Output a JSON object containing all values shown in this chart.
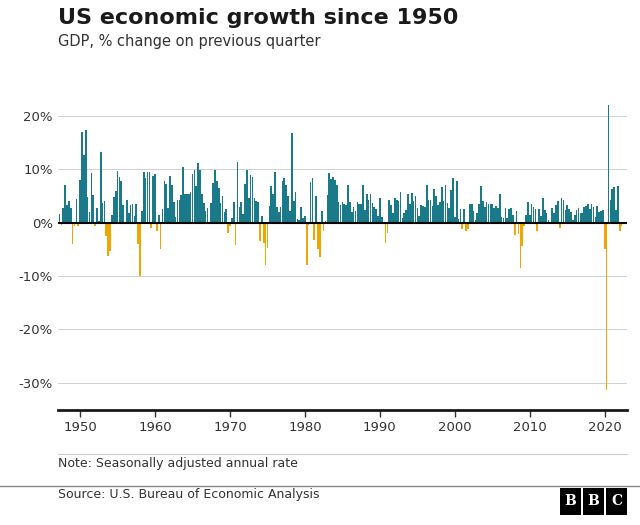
{
  "title": "US economic growth since 1950",
  "subtitle": "GDP, % change on previous quarter",
  "note": "Note: Seasonally adjusted annual rate",
  "source": "Source: U.S. Bureau of Economic Analysis",
  "bbc_logo": "BBC",
  "positive_color": "#1a7a8a",
  "negative_color": "#f0a500",
  "background_color": "#ffffff",
  "ylim": [
    -35,
    22
  ],
  "yticks": [
    -30,
    -20,
    -10,
    0,
    10,
    20
  ],
  "ytick_labels": [
    "-30%",
    "-20%",
    "-10%",
    "0%",
    "10%",
    "20%"
  ],
  "xticks": [
    1950,
    1960,
    1970,
    1980,
    1990,
    2000,
    2010,
    2020
  ],
  "gdp_data": [
    [
      1947.25,
      1.6
    ],
    [
      1947.5,
      -0.5
    ],
    [
      1947.75,
      2.8
    ],
    [
      1948.0,
      7.0
    ],
    [
      1948.25,
      3.2
    ],
    [
      1948.5,
      4.1
    ],
    [
      1948.75,
      2.7
    ],
    [
      1949.0,
      -4.0
    ],
    [
      1949.25,
      -0.7
    ],
    [
      1949.5,
      4.4
    ],
    [
      1949.75,
      -0.7
    ],
    [
      1950.0,
      8.0
    ],
    [
      1950.25,
      16.9
    ],
    [
      1950.5,
      12.7
    ],
    [
      1950.75,
      17.4
    ],
    [
      1951.0,
      4.7
    ],
    [
      1951.25,
      2.0
    ],
    [
      1951.5,
      9.2
    ],
    [
      1951.75,
      5.1
    ],
    [
      1952.0,
      -0.7
    ],
    [
      1952.25,
      2.7
    ],
    [
      1952.5,
      0.3
    ],
    [
      1952.75,
      13.2
    ],
    [
      1953.0,
      3.7
    ],
    [
      1953.25,
      4.1
    ],
    [
      1953.5,
      -2.6
    ],
    [
      1953.75,
      -6.3
    ],
    [
      1954.0,
      -5.4
    ],
    [
      1954.25,
      1.5
    ],
    [
      1954.5,
      4.7
    ],
    [
      1954.75,
      5.9
    ],
    [
      1955.0,
      9.7
    ],
    [
      1955.25,
      8.6
    ],
    [
      1955.5,
      7.7
    ],
    [
      1955.75,
      3.2
    ],
    [
      1956.0,
      0.1
    ],
    [
      1956.25,
      4.3
    ],
    [
      1956.5,
      1.8
    ],
    [
      1956.75,
      3.3
    ],
    [
      1957.0,
      3.5
    ],
    [
      1957.25,
      1.2
    ],
    [
      1957.5,
      3.4
    ],
    [
      1957.75,
      -4.1
    ],
    [
      1958.0,
      -10.0
    ],
    [
      1958.25,
      2.1
    ],
    [
      1958.5,
      9.5
    ],
    [
      1958.75,
      8.4
    ],
    [
      1959.0,
      9.5
    ],
    [
      1959.25,
      9.4
    ],
    [
      1959.5,
      -1.1
    ],
    [
      1959.75,
      8.7
    ],
    [
      1960.0,
      9.0
    ],
    [
      1960.25,
      -1.6
    ],
    [
      1960.5,
      1.5
    ],
    [
      1960.75,
      -4.9
    ],
    [
      1961.0,
      2.6
    ],
    [
      1961.25,
      7.7
    ],
    [
      1961.5,
      7.2
    ],
    [
      1961.75,
      2.8
    ],
    [
      1962.0,
      8.7
    ],
    [
      1962.25,
      7.0
    ],
    [
      1962.5,
      3.9
    ],
    [
      1962.75,
      1.0
    ],
    [
      1963.0,
      4.3
    ],
    [
      1963.25,
      4.3
    ],
    [
      1963.5,
      5.2
    ],
    [
      1963.75,
      10.4
    ],
    [
      1964.0,
      5.4
    ],
    [
      1964.25,
      5.3
    ],
    [
      1964.5,
      5.3
    ],
    [
      1964.75,
      5.8
    ],
    [
      1965.0,
      9.1
    ],
    [
      1965.25,
      9.9
    ],
    [
      1965.5,
      6.8
    ],
    [
      1965.75,
      11.1
    ],
    [
      1966.0,
      9.9
    ],
    [
      1966.25,
      5.4
    ],
    [
      1966.5,
      3.7
    ],
    [
      1966.75,
      2.2
    ],
    [
      1967.0,
      2.7
    ],
    [
      1967.25,
      -0.3
    ],
    [
      1967.5,
      3.7
    ],
    [
      1967.75,
      7.4
    ],
    [
      1968.0,
      9.8
    ],
    [
      1968.25,
      7.8
    ],
    [
      1968.5,
      6.4
    ],
    [
      1968.75,
      3.6
    ],
    [
      1969.0,
      5.0
    ],
    [
      1969.25,
      2.0
    ],
    [
      1969.5,
      2.5
    ],
    [
      1969.75,
      -1.9
    ],
    [
      1970.0,
      -0.7
    ],
    [
      1970.25,
      0.8
    ],
    [
      1970.5,
      3.8
    ],
    [
      1970.75,
      -4.2
    ],
    [
      1971.0,
      11.3
    ],
    [
      1971.25,
      3.0
    ],
    [
      1971.5,
      3.8
    ],
    [
      1971.75,
      1.6
    ],
    [
      1972.0,
      7.3
    ],
    [
      1972.25,
      9.8
    ],
    [
      1972.5,
      4.5
    ],
    [
      1972.75,
      8.9
    ],
    [
      1973.0,
      8.5
    ],
    [
      1973.25,
      4.5
    ],
    [
      1973.5,
      4.0
    ],
    [
      1973.75,
      3.8
    ],
    [
      1974.0,
      -3.4
    ],
    [
      1974.25,
      1.2
    ],
    [
      1974.5,
      -3.8
    ],
    [
      1974.75,
      -7.9
    ],
    [
      1975.0,
      -4.8
    ],
    [
      1975.25,
      3.1
    ],
    [
      1975.5,
      6.9
    ],
    [
      1975.75,
      5.4
    ],
    [
      1976.0,
      9.4
    ],
    [
      1976.25,
      3.0
    ],
    [
      1976.5,
      2.0
    ],
    [
      1976.75,
      2.9
    ],
    [
      1977.0,
      7.7
    ],
    [
      1977.25,
      8.4
    ],
    [
      1977.5,
      7.0
    ],
    [
      1977.75,
      4.9
    ],
    [
      1978.0,
      2.2
    ],
    [
      1978.25,
      16.7
    ],
    [
      1978.5,
      4.0
    ],
    [
      1978.75,
      5.7
    ],
    [
      1979.0,
      0.7
    ],
    [
      1979.25,
      0.4
    ],
    [
      1979.5,
      2.9
    ],
    [
      1979.75,
      0.9
    ],
    [
      1980.0,
      1.3
    ],
    [
      1980.25,
      -7.9
    ],
    [
      1980.5,
      -0.5
    ],
    [
      1980.75,
      7.6
    ],
    [
      1981.0,
      8.4
    ],
    [
      1981.25,
      -3.2
    ],
    [
      1981.5,
      4.9
    ],
    [
      1981.75,
      -4.9
    ],
    [
      1982.0,
      -6.4
    ],
    [
      1982.25,
      2.2
    ],
    [
      1982.5,
      -1.5
    ],
    [
      1982.75,
      0.3
    ],
    [
      1983.0,
      5.1
    ],
    [
      1983.25,
      9.3
    ],
    [
      1983.5,
      8.1
    ],
    [
      1983.75,
      8.5
    ],
    [
      1984.0,
      8.0
    ],
    [
      1984.25,
      7.1
    ],
    [
      1984.5,
      3.9
    ],
    [
      1984.75,
      3.3
    ],
    [
      1985.0,
      3.8
    ],
    [
      1985.25,
      3.5
    ],
    [
      1985.5,
      3.2
    ],
    [
      1985.75,
      7.1
    ],
    [
      1986.0,
      3.9
    ],
    [
      1986.25,
      1.9
    ],
    [
      1986.5,
      2.9
    ],
    [
      1986.75,
      2.1
    ],
    [
      1987.0,
      3.9
    ],
    [
      1987.25,
      3.5
    ],
    [
      1987.5,
      3.5
    ],
    [
      1987.75,
      7.0
    ],
    [
      1988.0,
      2.4
    ],
    [
      1988.25,
      5.3
    ],
    [
      1988.5,
      4.3
    ],
    [
      1988.75,
      5.4
    ],
    [
      1989.0,
      3.7
    ],
    [
      1989.25,
      2.9
    ],
    [
      1989.5,
      2.6
    ],
    [
      1989.75,
      1.2
    ],
    [
      1990.0,
      4.6
    ],
    [
      1990.25,
      1.0
    ],
    [
      1990.5,
      -0.3
    ],
    [
      1990.75,
      -3.9
    ],
    [
      1991.0,
      -1.9
    ],
    [
      1991.25,
      4.2
    ],
    [
      1991.5,
      3.3
    ],
    [
      1991.75,
      1.8
    ],
    [
      1992.0,
      4.5
    ],
    [
      1992.25,
      4.3
    ],
    [
      1992.5,
      4.0
    ],
    [
      1992.75,
      5.7
    ],
    [
      1993.0,
      0.8
    ],
    [
      1993.25,
      1.8
    ],
    [
      1993.5,
      2.3
    ],
    [
      1993.75,
      5.4
    ],
    [
      1994.0,
      3.5
    ],
    [
      1994.25,
      5.6
    ],
    [
      1994.5,
      4.0
    ],
    [
      1994.75,
      5.0
    ],
    [
      1995.0,
      2.7
    ],
    [
      1995.25,
      1.3
    ],
    [
      1995.5,
      3.3
    ],
    [
      1995.75,
      3.1
    ],
    [
      1996.0,
      2.9
    ],
    [
      1996.25,
      7.0
    ],
    [
      1996.5,
      4.2
    ],
    [
      1996.75,
      4.3
    ],
    [
      1997.0,
      3.1
    ],
    [
      1997.25,
      6.3
    ],
    [
      1997.5,
      5.0
    ],
    [
      1997.75,
      3.2
    ],
    [
      1998.0,
      3.8
    ],
    [
      1998.25,
      6.6
    ],
    [
      1998.5,
      4.0
    ],
    [
      1998.75,
      7.1
    ],
    [
      1999.0,
      3.6
    ],
    [
      1999.25,
      2.8
    ],
    [
      1999.5,
      6.0
    ],
    [
      1999.75,
      8.3
    ],
    [
      2000.0,
      1.0
    ],
    [
      2000.25,
      7.8
    ],
    [
      2000.5,
      0.6
    ],
    [
      2000.75,
      2.5
    ],
    [
      2001.0,
      -1.3
    ],
    [
      2001.25,
      2.6
    ],
    [
      2001.5,
      -1.6
    ],
    [
      2001.75,
      -1.3
    ],
    [
      2002.0,
      3.5
    ],
    [
      2002.25,
      3.5
    ],
    [
      2002.5,
      2.2
    ],
    [
      2002.75,
      0.5
    ],
    [
      2003.0,
      1.8
    ],
    [
      2003.25,
      3.5
    ],
    [
      2003.5,
      6.9
    ],
    [
      2003.75,
      4.1
    ],
    [
      2004.0,
      3.0
    ],
    [
      2004.25,
      3.8
    ],
    [
      2004.5,
      3.5
    ],
    [
      2004.75,
      3.5
    ],
    [
      2005.0,
      3.5
    ],
    [
      2005.25,
      2.7
    ],
    [
      2005.5,
      3.1
    ],
    [
      2005.75,
      2.7
    ],
    [
      2006.0,
      5.4
    ],
    [
      2006.25,
      1.1
    ],
    [
      2006.5,
      0.8
    ],
    [
      2006.75,
      2.8
    ],
    [
      2007.0,
      0.9
    ],
    [
      2007.25,
      2.6
    ],
    [
      2007.5,
      2.7
    ],
    [
      2007.75,
      1.4
    ],
    [
      2008.0,
      -2.3
    ],
    [
      2008.25,
      2.1
    ],
    [
      2008.5,
      -2.1
    ],
    [
      2008.75,
      -8.5
    ],
    [
      2009.0,
      -4.4
    ],
    [
      2009.25,
      -0.6
    ],
    [
      2009.5,
      1.5
    ],
    [
      2009.75,
      3.9
    ],
    [
      2010.0,
      1.5
    ],
    [
      2010.25,
      3.5
    ],
    [
      2010.5,
      3.0
    ],
    [
      2010.75,
      2.5
    ],
    [
      2011.0,
      -1.5
    ],
    [
      2011.25,
      2.5
    ],
    [
      2011.5,
      1.3
    ],
    [
      2011.75,
      4.6
    ],
    [
      2012.0,
      2.3
    ],
    [
      2012.25,
      1.8
    ],
    [
      2012.5,
      0.5
    ],
    [
      2012.75,
      0.1
    ],
    [
      2013.0,
      2.7
    ],
    [
      2013.25,
      1.8
    ],
    [
      2013.5,
      3.2
    ],
    [
      2013.75,
      4.1
    ],
    [
      2014.0,
      -1.1
    ],
    [
      2014.25,
      4.6
    ],
    [
      2014.5,
      4.3
    ],
    [
      2014.75,
      2.3
    ],
    [
      2015.0,
      3.2
    ],
    [
      2015.25,
      2.6
    ],
    [
      2015.5,
      2.0
    ],
    [
      2015.75,
      0.4
    ],
    [
      2016.0,
      1.5
    ],
    [
      2016.25,
      2.3
    ],
    [
      2016.5,
      2.8
    ],
    [
      2016.75,
      1.8
    ],
    [
      2017.0,
      1.8
    ],
    [
      2017.25,
      2.9
    ],
    [
      2017.5,
      3.1
    ],
    [
      2017.75,
      3.5
    ],
    [
      2018.0,
      2.5
    ],
    [
      2018.25,
      3.5
    ],
    [
      2018.5,
      2.9
    ],
    [
      2018.75,
      1.1
    ],
    [
      2019.0,
      3.1
    ],
    [
      2019.25,
      2.0
    ],
    [
      2019.5,
      2.1
    ],
    [
      2019.75,
      2.4
    ],
    [
      2020.0,
      -5.0
    ],
    [
      2020.25,
      -31.4
    ],
    [
      2020.5,
      22.0
    ],
    [
      2020.75,
      4.3
    ],
    [
      2021.0,
      6.3
    ],
    [
      2021.25,
      6.7
    ],
    [
      2021.5,
      2.3
    ],
    [
      2021.75,
      6.9
    ],
    [
      2022.0,
      -1.6
    ],
    [
      2022.25,
      -0.6
    ]
  ]
}
